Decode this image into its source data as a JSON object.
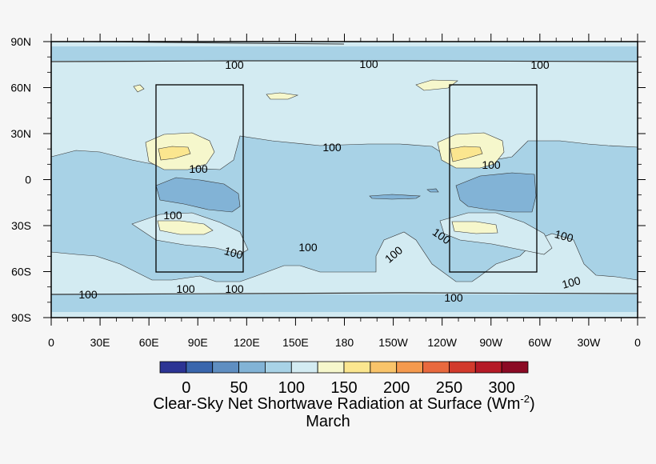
{
  "map": {
    "lat_labels": [
      "90N",
      "60N",
      "30N",
      "0",
      "30S",
      "60S",
      "90S"
    ],
    "lon_labels": [
      "0",
      "30E",
      "60E",
      "90E",
      "120E",
      "150E",
      "180",
      "150W",
      "120W",
      "90W",
      "60W",
      "30W",
      "0"
    ],
    "contour_label": "100",
    "colors": {
      "level_25_50": "#5f8ec1",
      "level_50_75": "#82b3d6",
      "level_75_100": "#a8d2e6",
      "level_100_125": "#d3ebf2",
      "level_125_150": "#f6f7cc",
      "level_150_175": "#fbe68f",
      "frame": "#000000",
      "background": "#f6f6f6"
    },
    "boxes": [
      {
        "name": "box-west",
        "lon_range": [
          "60E",
          "120E"
        ],
        "lat_range": [
          "60S",
          "60N"
        ]
      },
      {
        "name": "box-east",
        "lon_range": [
          "120W",
          "60W"
        ],
        "lat_range": [
          "60S",
          "60N"
        ]
      }
    ]
  },
  "colorbar": {
    "labels": [
      "0",
      "50",
      "100",
      "150",
      "200",
      "250",
      "300"
    ],
    "colors": [
      "#2c3494",
      "#3a66ad",
      "#5f8ec1",
      "#82b3d6",
      "#a8d2e6",
      "#d3ebf2",
      "#f6f7cc",
      "#fbe68f",
      "#f9c46a",
      "#f59a4e",
      "#e8693e",
      "#d23a2c",
      "#b51a26",
      "#8b0a24"
    ]
  },
  "title": {
    "line1_main": "Clear-Sky Net Shortwave Radiation at Surface (Wm",
    "superscript": "-2",
    "line1_end": ")",
    "line2": "March"
  }
}
